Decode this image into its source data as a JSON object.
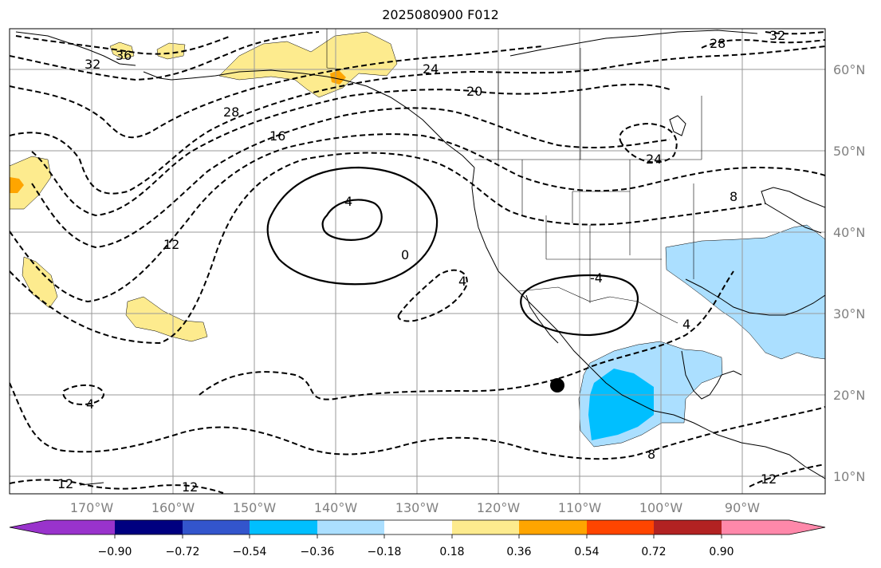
{
  "title": "2025080900 F012",
  "map": {
    "region": "Northeast Pacific / North America",
    "lon_labels": [
      "170°W",
      "160°W",
      "150°W",
      "140°W",
      "130°W",
      "120°W",
      "110°W",
      "100°W",
      "90°W"
    ],
    "lat_labels": [
      "60°N",
      "50°N",
      "40°N",
      "30°N",
      "20°N",
      "10°N"
    ],
    "gridlines": true,
    "marker": "black-dot",
    "contour_labels": [
      "36",
      "32",
      "28",
      "24",
      "20",
      "16",
      "12",
      "4",
      "0",
      "4",
      "4",
      "8",
      "8",
      "12",
      "24",
      "4",
      "-4",
      "12",
      "12",
      "28",
      "32"
    ],
    "shading_colors": [
      "#fdeb8e",
      "#ffa500",
      "#abdfff",
      "#00bfff"
    ]
  },
  "colorbar": {
    "colors": [
      "#9933cc",
      "#000080",
      "#3355cc",
      "#00bfff",
      "#abdfff",
      "#ffffff",
      "#fdeb8e",
      "#ffa500",
      "#ff4500",
      "#b22222",
      "#ff88aa"
    ],
    "ticks": [
      "−0.90",
      "−0.72",
      "−0.54",
      "−0.36",
      "−0.18",
      "0.18",
      "0.36",
      "0.54",
      "0.72",
      "0.90"
    ]
  }
}
